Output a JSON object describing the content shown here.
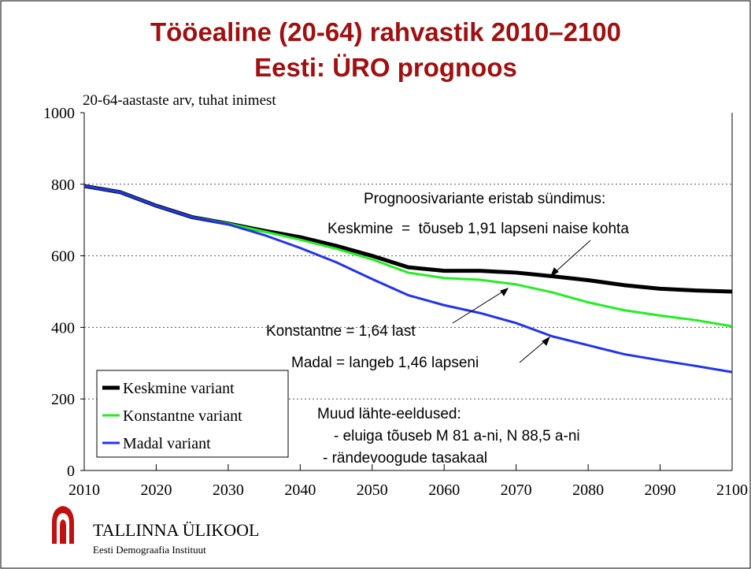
{
  "chart_data": {
    "type": "line",
    "title": "Tööealine (20-64) rahvastik 2010–2100",
    "subtitle": "Eesti: ÜRO prognoos",
    "y_label": "20-64-aastaste arv, tuhat inimest",
    "x": [
      2010,
      2015,
      2020,
      2025,
      2030,
      2035,
      2040,
      2045,
      2050,
      2055,
      2060,
      2065,
      2070,
      2075,
      2080,
      2085,
      2090,
      2095,
      2100
    ],
    "series": [
      {
        "name": "Keskmine variant",
        "color": "#000000",
        "values": [
          795,
          778,
          740,
          708,
          690,
          670,
          652,
          628,
          600,
          568,
          558,
          558,
          553,
          543,
          532,
          518,
          508,
          503,
          500
        ]
      },
      {
        "name": "Konstantne variant",
        "color": "#22ee22",
        "values": [
          795,
          778,
          740,
          708,
          690,
          668,
          645,
          620,
          590,
          553,
          538,
          533,
          520,
          498,
          470,
          448,
          433,
          420,
          403
        ]
      },
      {
        "name": "Madal variant",
        "color": "#2233ee",
        "values": [
          795,
          778,
          740,
          708,
          688,
          658,
          622,
          582,
          535,
          490,
          462,
          440,
          412,
          375,
          350,
          325,
          308,
          292,
          275
        ]
      }
    ],
    "xlim": [
      2010,
      2100
    ],
    "xticks": [
      2010,
      2020,
      2030,
      2040,
      2050,
      2060,
      2070,
      2080,
      2090,
      2100
    ],
    "ylim": [
      0,
      1000
    ],
    "yticks": [
      0,
      200,
      400,
      600,
      800,
      1000
    ],
    "grid": true,
    "legend": "lower left",
    "annotations": [
      "Prognoosivariante eristab sündimus:",
      "Keskmine  =  tõuseb 1,91 lapseni naise kohta",
      "Konstantne = 1,64 last",
      "Madal = langeb 1,46 lapseni",
      "Muud lähte-eeldused:",
      "- eluiga tõuseb M 81 a-ni, N 88,5 a-ni",
      "- rändevoogude tasakaal"
    ]
  },
  "logo": {
    "name": "TALLINNA ÜLIKOOL",
    "subtitle": "Eesti Demograafia Instituut"
  }
}
